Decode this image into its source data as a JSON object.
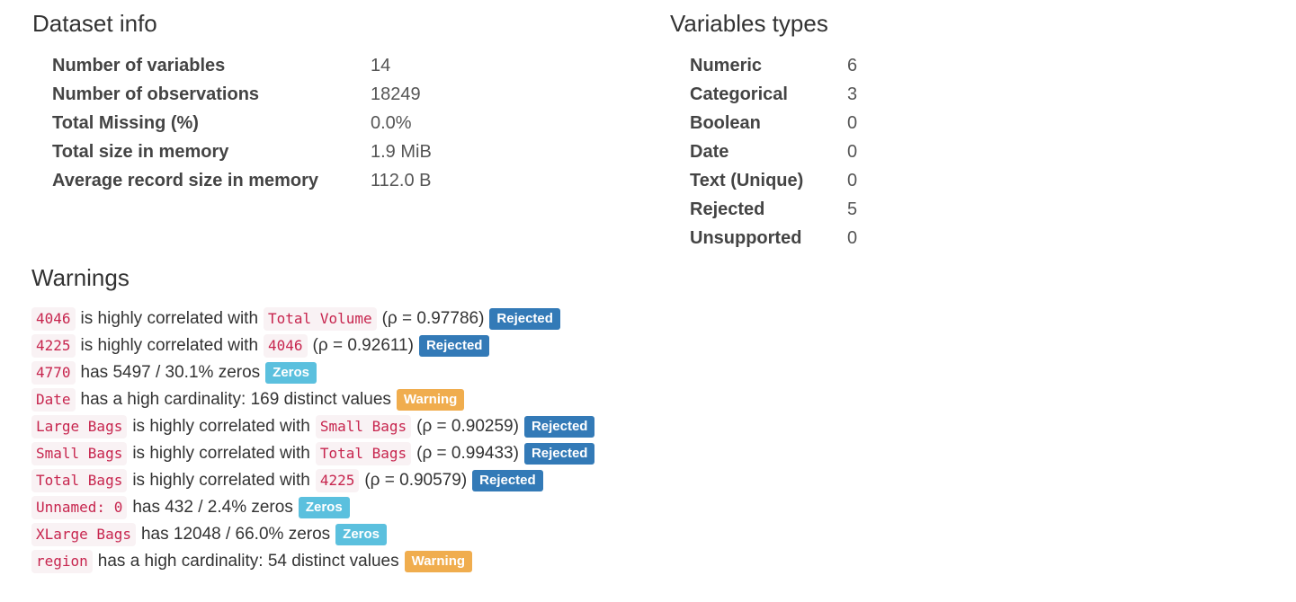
{
  "dataset_info": {
    "title": "Dataset info",
    "rows": [
      {
        "label": "Number of variables",
        "value": "14"
      },
      {
        "label": "Number of observations",
        "value": "18249"
      },
      {
        "label": "Total Missing (%)",
        "value": "0.0%"
      },
      {
        "label": "Total size in memory",
        "value": "1.9 MiB"
      },
      {
        "label": "Average record size in memory",
        "value": "112.0 B"
      }
    ]
  },
  "variables_types": {
    "title": "Variables types",
    "rows": [
      {
        "label": "Numeric",
        "value": "6"
      },
      {
        "label": "Categorical",
        "value": "3"
      },
      {
        "label": "Boolean",
        "value": "0"
      },
      {
        "label": "Date",
        "value": "0"
      },
      {
        "label": "Text (Unique)",
        "value": "0"
      },
      {
        "label": "Rejected",
        "value": "5"
      },
      {
        "label": "Unsupported",
        "value": "0"
      }
    ]
  },
  "warnings": {
    "title": "Warnings",
    "items": [
      {
        "var": "4046",
        "text": "is highly correlated with",
        "other": "Total Volume",
        "rho": "(ρ = 0.97786)",
        "badge": "Rejected",
        "badge_type": "rejected"
      },
      {
        "var": "4225",
        "text": "is highly correlated with",
        "other": "4046",
        "rho": "(ρ = 0.92611)",
        "badge": "Rejected",
        "badge_type": "rejected"
      },
      {
        "var": "4770",
        "text": "has 5497 / 30.1% zeros",
        "badge": "Zeros",
        "badge_type": "zeros"
      },
      {
        "var": "Date",
        "text": "has a high cardinality: 169 distinct values",
        "badge": "Warning",
        "badge_type": "warning"
      },
      {
        "var": "Large Bags",
        "text": "is highly correlated with",
        "other": "Small Bags",
        "rho": "(ρ = 0.90259)",
        "badge": "Rejected",
        "badge_type": "rejected"
      },
      {
        "var": "Small Bags",
        "text": "is highly correlated with",
        "other": "Total Bags",
        "rho": "(ρ = 0.99433)",
        "badge": "Rejected",
        "badge_type": "rejected"
      },
      {
        "var": "Total Bags",
        "text": "is highly correlated with",
        "other": "4225",
        "rho": "(ρ = 0.90579)",
        "badge": "Rejected",
        "badge_type": "rejected"
      },
      {
        "var": "Unnamed: 0",
        "text": "has 432 / 2.4% zeros",
        "badge": "Zeros",
        "badge_type": "zeros"
      },
      {
        "var": "XLarge Bags",
        "text": "has 12048 / 66.0% zeros",
        "badge": "Zeros",
        "badge_type": "zeros"
      },
      {
        "var": "region",
        "text": "has a high cardinality: 54 distinct values",
        "badge": "Warning",
        "badge_type": "warning"
      }
    ]
  }
}
